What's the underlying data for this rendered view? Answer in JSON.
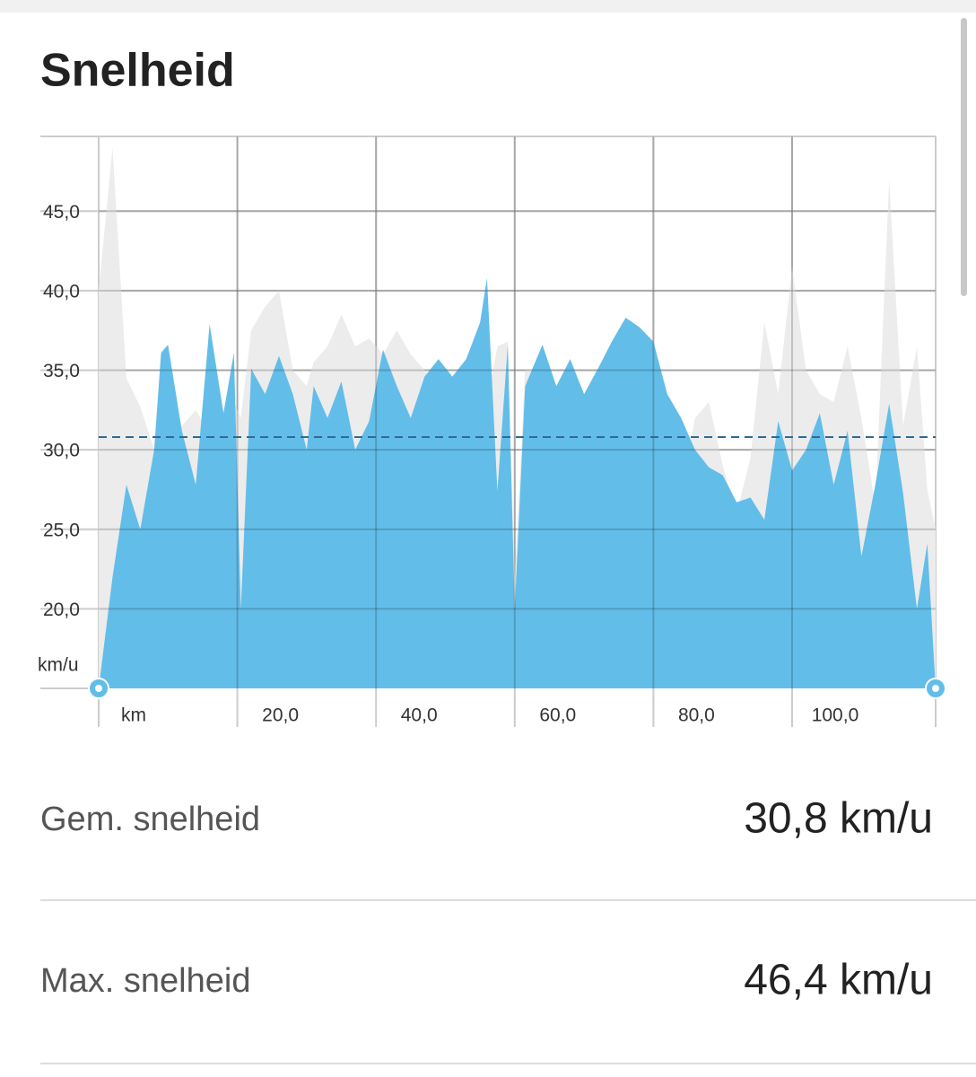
{
  "chart_data": {
    "type": "area",
    "title": "Snelheid",
    "y_unit_label": "km/u",
    "x_unit_label": "km",
    "x": [
      0,
      2,
      4,
      6,
      8,
      9,
      10,
      12,
      14,
      16,
      18,
      19.5,
      20.5,
      22,
      24,
      26,
      28,
      30,
      31,
      33,
      35,
      37,
      39,
      41,
      43,
      45,
      47,
      49,
      51,
      53,
      55,
      56,
      57.5,
      59,
      60,
      61.5,
      64,
      66,
      68,
      70,
      72,
      74,
      76,
      78,
      80,
      82,
      84,
      86,
      88,
      90,
      92,
      94,
      96,
      98,
      100,
      102,
      104,
      106,
      108,
      110,
      112,
      114,
      116,
      118,
      119.5,
      120.7
    ],
    "series": [
      {
        "color": "#ececec",
        "values": [
          40,
          49,
          34.5,
          32.7,
          30,
          30.5,
          31,
          31.5,
          32.5,
          31,
          32,
          33,
          32,
          37.5,
          39,
          40,
          35,
          34,
          35.5,
          36.5,
          38.5,
          36.5,
          37,
          36,
          37.5,
          36,
          35,
          34,
          33.5,
          32.5,
          31.5,
          33,
          36.5,
          36.8,
          22,
          35,
          35,
          33,
          29.5,
          28.5,
          28.5,
          32.5,
          24.5,
          24,
          26,
          23.5,
          27,
          32,
          33,
          29,
          26,
          29.5,
          38,
          33.5,
          41.5,
          35,
          33.5,
          33,
          36.5,
          32,
          26.5,
          47,
          31.5,
          36.5,
          27.5,
          25
        ]
      },
      {
        "color": "#63bde9",
        "values": [
          15,
          22,
          27.8,
          25,
          30,
          36.1,
          36.6,
          31.2,
          27.8,
          37.9,
          32.3,
          36.1,
          20,
          35.1,
          33.5,
          35.9,
          33.5,
          30,
          34,
          32,
          34.3,
          30,
          31.8,
          36.3,
          34,
          32,
          34.6,
          35.7,
          34.6,
          35.7,
          38,
          40.8,
          27.4,
          36.6,
          20,
          34,
          36.6,
          34,
          35.7,
          33.5,
          35.1,
          36.8,
          38.3,
          37.7,
          36.8,
          33.5,
          32,
          30,
          28.9,
          28.4,
          26.7,
          27,
          25.6,
          31.8,
          28.7,
          30,
          32.3,
          27.8,
          31.2,
          23.3,
          27.8,
          32.9,
          27.3,
          20,
          24.1,
          15
        ]
      }
    ],
    "reference_line": 30.8,
    "reference_color": "#2d6a94",
    "xlim": [
      0,
      120.7
    ],
    "ylim": [
      15,
      49.7
    ],
    "xticks": [
      {
        "value": 20,
        "label": "20,0"
      },
      {
        "value": 40,
        "label": "40,0"
      },
      {
        "value": 60,
        "label": "60,0"
      },
      {
        "value": 80,
        "label": "80,0"
      },
      {
        "value": 100,
        "label": "100,0"
      }
    ],
    "yticks": [
      {
        "value": 20,
        "label": "20,0"
      },
      {
        "value": 25,
        "label": "25,0"
      },
      {
        "value": 30,
        "label": "30,0"
      },
      {
        "value": 35,
        "label": "35,0"
      },
      {
        "value": 40,
        "label": "40,0"
      },
      {
        "value": 45,
        "label": "45,0"
      }
    ],
    "grid": true
  },
  "stats": [
    {
      "label": "Gem. snelheid",
      "value": "30,8 km/u"
    },
    {
      "label": "Max. snelheid",
      "value": "46,4 km/u"
    }
  ]
}
